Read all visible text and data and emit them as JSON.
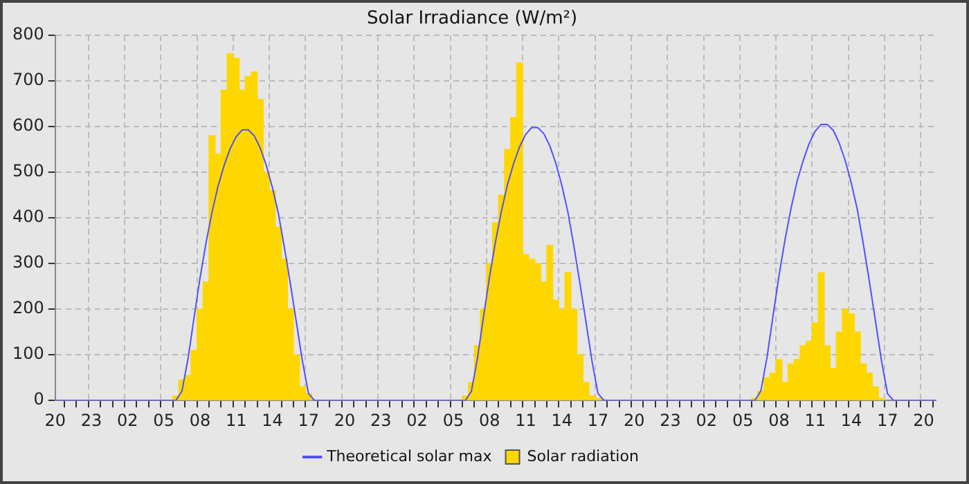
{
  "chart_data": {
    "type": "bar",
    "title": "Solar Irradiance (W/m²)",
    "categories": [
      "20",
      null,
      null,
      null,
      null,
      null,
      "23",
      null,
      null,
      null,
      null,
      null,
      "02",
      null,
      null,
      null,
      null,
      null,
      "05",
      null,
      null,
      null,
      null,
      null,
      "08",
      null,
      null,
      null,
      null,
      null,
      "11",
      null,
      null,
      null,
      null,
      null,
      "14",
      null,
      null,
      null,
      null,
      null,
      "17",
      null,
      null,
      null,
      null,
      null,
      "20",
      null,
      null,
      null,
      null,
      null,
      "23",
      null,
      null,
      null,
      null,
      null,
      "02",
      null,
      null,
      null,
      null,
      null,
      "05",
      null,
      null,
      null,
      null,
      null,
      "08",
      null,
      null,
      null,
      null,
      null,
      "11",
      null,
      null,
      null,
      null,
      null,
      "14",
      null,
      null,
      null,
      null,
      null,
      "17",
      null,
      null,
      null,
      null,
      null,
      "20",
      null,
      null,
      null,
      null,
      null,
      "23",
      null,
      null,
      null,
      null,
      null,
      "02",
      null,
      null,
      null,
      null,
      null,
      "05",
      null,
      null,
      null,
      null,
      null,
      "08",
      null,
      null,
      null,
      null,
      null,
      "11",
      null,
      null,
      null,
      null,
      null,
      "14",
      null,
      null,
      null,
      null,
      null,
      "17",
      null,
      null,
      null,
      null,
      null,
      "20",
      null,
      null
    ],
    "ylim": [
      0,
      800
    ],
    "yticks": [
      0,
      100,
      200,
      300,
      400,
      500,
      600,
      700,
      800
    ],
    "grid": true,
    "legend": "bottom",
    "series": [
      {
        "name": "Theoretical solar max",
        "type": "line",
        "color": "#5050ff",
        "marker": "none",
        "line_style": "solid",
        "values": [
          0,
          0,
          0,
          0,
          0,
          0,
          0,
          0,
          0,
          0,
          0,
          0,
          0,
          0,
          0,
          0,
          0,
          0,
          0,
          0,
          0,
          20,
          90,
          180,
          268,
          345,
          413,
          470,
          515,
          552,
          578,
          593,
          593,
          580,
          553,
          515,
          467,
          410,
          335,
          255,
          170,
          85,
          15,
          0,
          0,
          0,
          0,
          0,
          0,
          0,
          0,
          0,
          0,
          0,
          0,
          0,
          0,
          0,
          0,
          0,
          0,
          0,
          0,
          0,
          0,
          0,
          0,
          0,
          0,
          20,
          92,
          182,
          270,
          348,
          416,
          474,
          519,
          556,
          583,
          598,
          598,
          585,
          558,
          520,
          471,
          413,
          338,
          257,
          172,
          86,
          15,
          0,
          0,
          0,
          0,
          0,
          0,
          0,
          0,
          0,
          0,
          0,
          0,
          0,
          0,
          0,
          0,
          0,
          0,
          0,
          0,
          0,
          0,
          0,
          0,
          0,
          0,
          21,
          93,
          184,
          273,
          352,
          421,
          480,
          525,
          563,
          590,
          605,
          605,
          592,
          564,
          525,
          476,
          418,
          342,
          260,
          174,
          87,
          15,
          0,
          0,
          0,
          0,
          0,
          0,
          0,
          0
        ]
      },
      {
        "name": "Solar radiation",
        "color": "#ffd700",
        "values": [
          null,
          null,
          null,
          null,
          null,
          null,
          null,
          null,
          null,
          null,
          null,
          null,
          null,
          null,
          null,
          null,
          null,
          null,
          null,
          null,
          10,
          45,
          55,
          110,
          200,
          260,
          580,
          540,
          680,
          760,
          750,
          680,
          710,
          720,
          660,
          500,
          460,
          380,
          310,
          200,
          100,
          30,
          15,
          null,
          null,
          null,
          null,
          null,
          null,
          null,
          null,
          null,
          null,
          null,
          null,
          null,
          null,
          null,
          null,
          null,
          null,
          null,
          null,
          null,
          null,
          null,
          null,
          null,
          10,
          40,
          120,
          200,
          300,
          390,
          450,
          550,
          620,
          740,
          320,
          310,
          300,
          260,
          340,
          220,
          200,
          280,
          200,
          100,
          40,
          10,
          5,
          null,
          null,
          null,
          null,
          null,
          null,
          null,
          null,
          null,
          null,
          null,
          null,
          null,
          null,
          null,
          null,
          null,
          null,
          null,
          null,
          null,
          null,
          null,
          null,
          null,
          5,
          20,
          50,
          60,
          90,
          40,
          80,
          90,
          120,
          130,
          170,
          280,
          120,
          70,
          150,
          200,
          190,
          150,
          80,
          60,
          30,
          5,
          null,
          null,
          null,
          null,
          null,
          null,
          null,
          null,
          null
        ]
      }
    ]
  }
}
